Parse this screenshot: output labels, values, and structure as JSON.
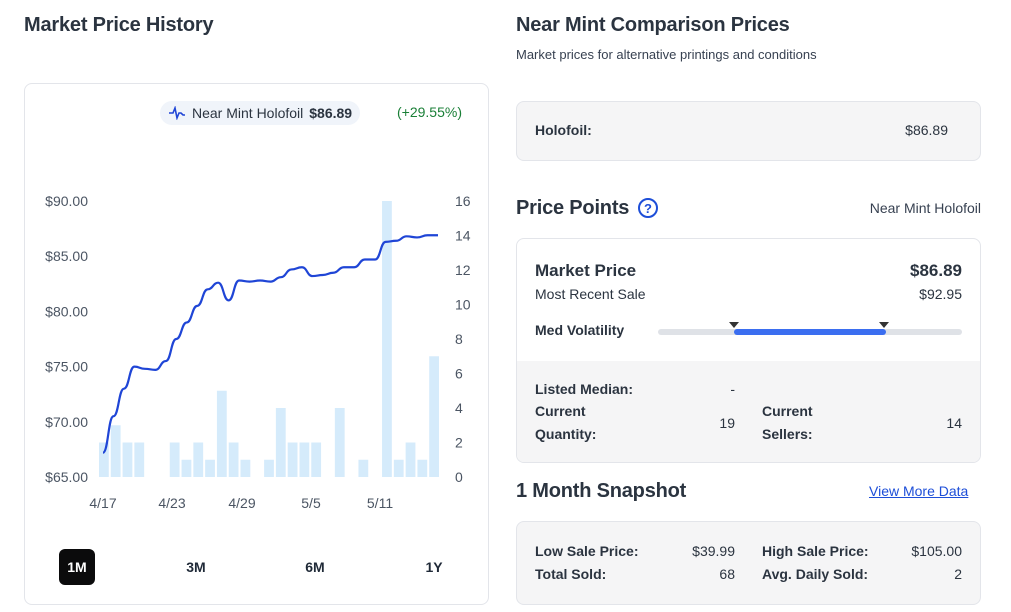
{
  "history": {
    "title": "Market Price History",
    "legend_label": "Near Mint Holofoil",
    "legend_price": "$86.89",
    "legend_change": "(+29.55%)",
    "ranges": [
      "1M",
      "3M",
      "6M",
      "1Y"
    ],
    "active_range": "1M"
  },
  "chart_data": {
    "type": "line",
    "x_ticks": [
      "4/17",
      "4/23",
      "4/29",
      "5/5",
      "5/11"
    ],
    "y_left_ticks": [
      "$90.00",
      "$85.00",
      "$80.00",
      "$75.00",
      "$70.00",
      "$65.00"
    ],
    "y_right_ticks": [
      "16",
      "14",
      "12",
      "10",
      "8",
      "6",
      "4",
      "2",
      "0"
    ],
    "ylim_left": [
      65,
      90
    ],
    "ylim_right": [
      0,
      16
    ],
    "series": [
      {
        "name": "Near Mint Holofoil",
        "color": "#1f45d6",
        "values": [
          67.2,
          70.5,
          73.0,
          75.0,
          74.8,
          74.7,
          75.5,
          77.5,
          79.0,
          80.5,
          82.0,
          82.6,
          81.0,
          82.8,
          82.7,
          82.8,
          82.7,
          83.1,
          83.8,
          84.0,
          83.2,
          83.3,
          83.5,
          84.0,
          84.0,
          84.7,
          84.7,
          86.3,
          86.4,
          86.8,
          86.7,
          86.9,
          86.9
        ]
      },
      {
        "name": "Quantity Sold",
        "type": "bar",
        "color": "#d5ebfb",
        "axis": "right",
        "values": [
          2,
          3,
          2,
          2,
          0,
          0,
          2,
          1,
          2,
          1,
          5,
          2,
          1,
          0,
          1,
          4,
          2,
          2,
          2,
          0,
          4,
          0,
          1,
          0,
          16,
          1,
          2,
          1,
          7
        ]
      }
    ],
    "grid": false
  },
  "comparison": {
    "title": "Near Mint Comparison Prices",
    "subtitle": "Market prices for alternative printings and conditions",
    "rows": [
      {
        "label": "Holofoil:",
        "value": "$86.89"
      }
    ]
  },
  "price_points": {
    "title": "Price Points",
    "help_icon": "question-circle-icon",
    "condition": "Near Mint Holofoil",
    "market_label": "Market Price",
    "market_value": "$86.89",
    "recent_label": "Most Recent Sale",
    "recent_value": "$92.95",
    "volatility_label": "Med Volatility",
    "volatility_range": [
      0.25,
      0.75
    ],
    "listed_median_label": "Listed Median:",
    "listed_median_value": "-",
    "qty_label_1": "Current",
    "qty_label_2": "Quantity:",
    "qty_value": "19",
    "sellers_label_1": "Current",
    "sellers_label_2": "Sellers:",
    "sellers_value": "14"
  },
  "snapshot": {
    "title": "1 Month Snapshot",
    "link": "View More Data",
    "low_label": "Low Sale Price:",
    "low_value": "$39.99",
    "high_label": "High Sale Price:",
    "high_value": "$105.00",
    "total_label": "Total Sold:",
    "total_value": "68",
    "avg_label": "Avg. Daily Sold:",
    "avg_value": "2"
  }
}
